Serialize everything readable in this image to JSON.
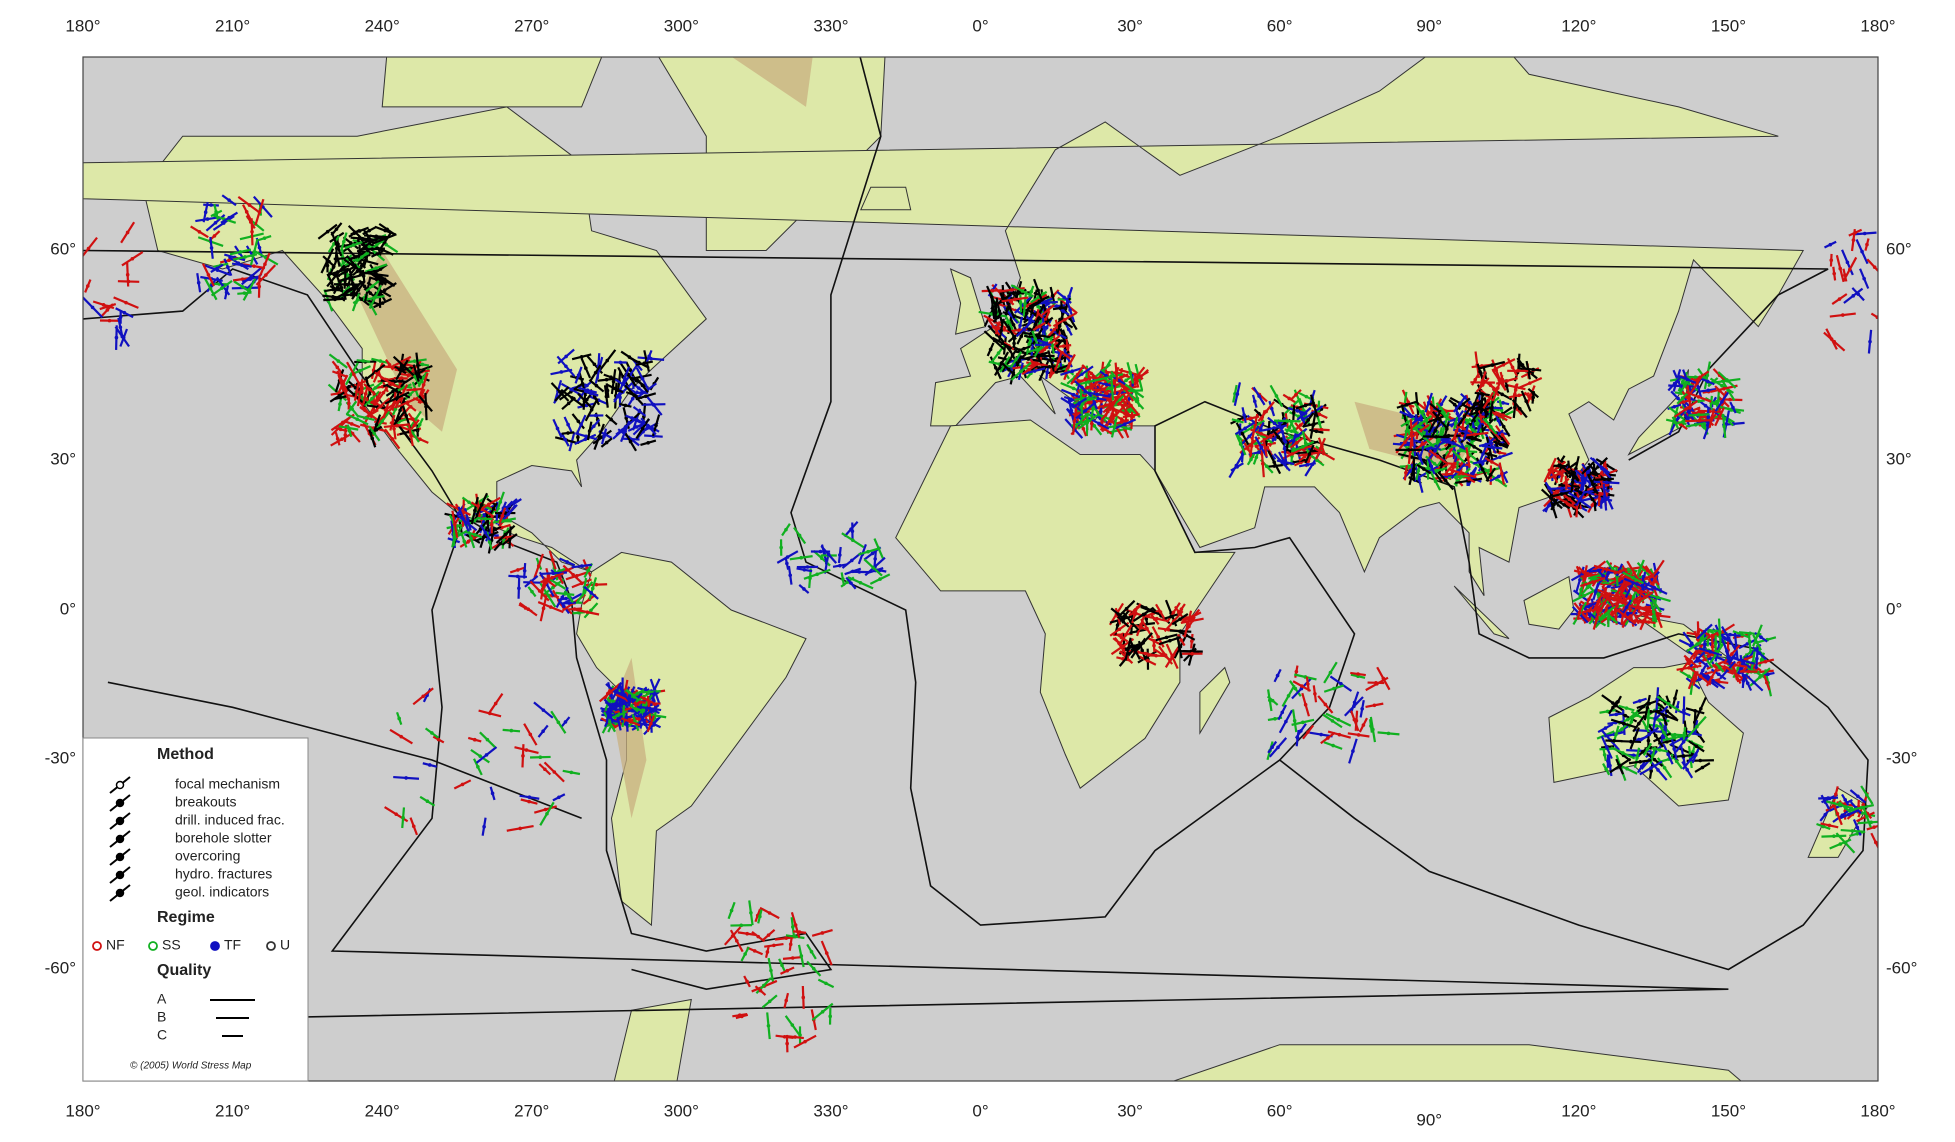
{
  "map": {
    "top_labels": [
      "180°",
      "210°",
      "240°",
      "270°",
      "300°",
      "330°",
      "0°",
      "30°",
      "60°",
      "90°",
      "120°",
      "150°",
      "180°"
    ],
    "bottom_labels": [
      "180°",
      "210°",
      "240°",
      "270°",
      "300°",
      "330°",
      "0°",
      "30°",
      "60°",
      "90°",
      "120°",
      "150°",
      "180°"
    ],
    "left_labels": [
      "60°",
      "30°",
      "0°",
      "-30°",
      "-60°"
    ],
    "right_labels": [
      "60°",
      "30°",
      "0°",
      "-30°",
      "-60°"
    ]
  },
  "legend": {
    "method_title": "Method",
    "methods": [
      "focal mechanism",
      "breakouts",
      "drill. induced frac.",
      "borehole slotter",
      "overcoring",
      "hydro. fractures",
      "geol. indicators"
    ],
    "regime_title": "Regime",
    "regimes": [
      "NF",
      "SS",
      "TF",
      "U"
    ],
    "quality_title": "Quality",
    "qualities": [
      "A",
      "B",
      "C"
    ],
    "copyright": "© (2005) World Stress Map"
  }
}
